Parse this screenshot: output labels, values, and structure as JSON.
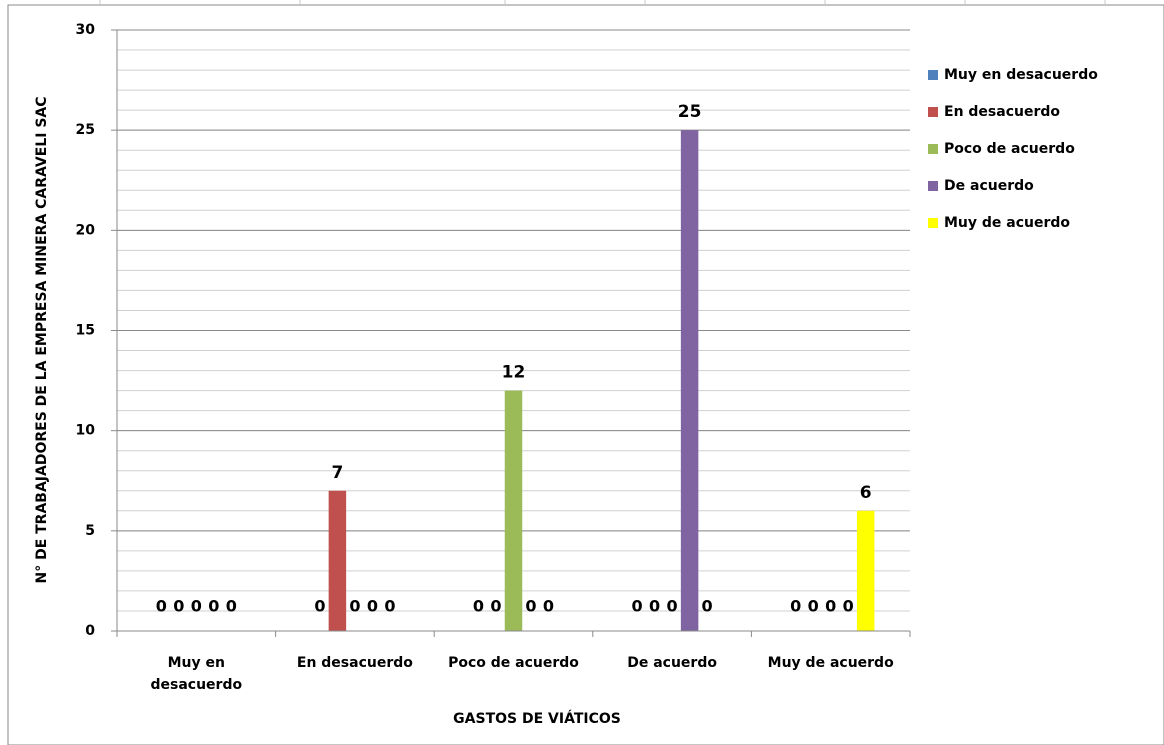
{
  "chart_data": {
    "type": "bar",
    "xlabel": "GASTOS DE VIÁTICOS",
    "ylabel": "N° DE TRABAJADORES DE LA EMPRESA MINERA CARAVELI SAC",
    "categories": [
      "Muy en desacuerdo",
      "En  desacuerdo",
      "Poco de acuerdo",
      "De acuerdo",
      "Muy de acuerdo"
    ],
    "series": [
      {
        "name": "Muy en desacuerdo",
        "color": "#4f81bd",
        "values": [
          0,
          0,
          0,
          0,
          0
        ]
      },
      {
        "name": "En  desacuerdo",
        "color": "#c0504d",
        "values": [
          0,
          7,
          0,
          0,
          0
        ]
      },
      {
        "name": "Poco de acuerdo",
        "color": "#9bbb59",
        "values": [
          0,
          0,
          12,
          0,
          0
        ]
      },
      {
        "name": "De acuerdo",
        "color": "#8064a2",
        "values": [
          0,
          0,
          0,
          25,
          0
        ]
      },
      {
        "name": "Muy de acuerdo",
        "color": "#ffff00",
        "values": [
          0,
          0,
          0,
          0,
          6
        ]
      }
    ],
    "ylim": [
      0,
      30
    ],
    "yticks": [
      0,
      5,
      10,
      15,
      20,
      25,
      30
    ],
    "grid": true,
    "minor_grid_step": 1,
    "legend": "right",
    "data_labels": true
  }
}
